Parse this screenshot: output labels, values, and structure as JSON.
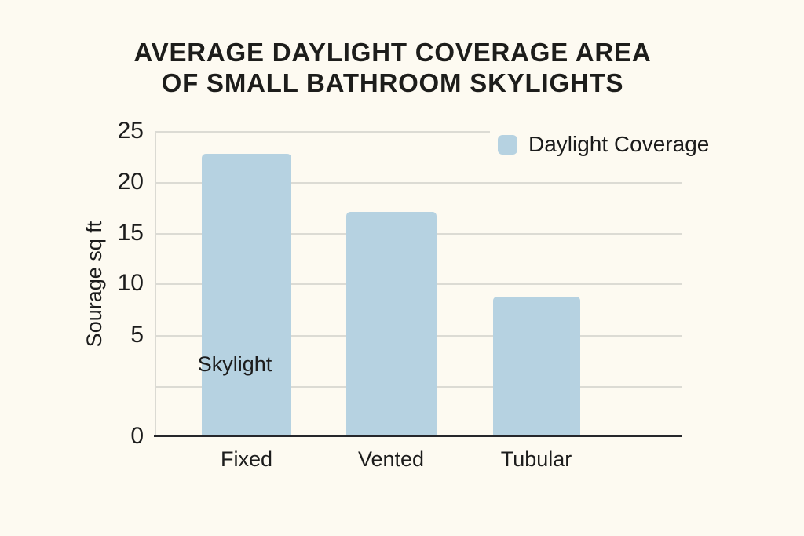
{
  "title": {
    "line1": "AVERAGE DAYLIGHT COVERAGE AREA",
    "line2": "OF SMALL BATHROOM SKYLIGHTS"
  },
  "legend": {
    "label": "Daylight Coverage"
  },
  "y_axis": {
    "label": "Sourage sq ft",
    "ticks": [
      "25",
      "20",
      "15",
      "10",
      "5",
      "0"
    ]
  },
  "x_axis": {
    "label": "Skylight",
    "categories": [
      "Fixed",
      "Vented",
      "Tubular"
    ]
  },
  "chart_data": {
    "type": "bar",
    "title": "AVERAGE DAYLIGHT COVERAGE AREA OF SMALL BATHROOM SKYLIGHTS",
    "categories": [
      "Fixed",
      "Vented",
      "Tubular"
    ],
    "series": [
      {
        "name": "Daylight Coverage",
        "values": [
          22.8,
          17.1,
          8.8
        ]
      }
    ],
    "xlabel": "Skylight",
    "ylabel": "Sourage sq ft",
    "ylim": [
      0,
      25
    ],
    "yticks": [
      0,
      5,
      10,
      15,
      20,
      25
    ],
    "grid": true,
    "legend_position": "top-right",
    "bar_color": "#b6d2e1",
    "axis_note": "an extra unlabeled gridline sits between 5 and 0, stretching the bottom interval"
  },
  "colors": {
    "background": "#fdfaf1",
    "bar": "#b6d2e1",
    "gridline": "#dcdbd4",
    "axis_line": "#26272b",
    "text": "#1c1c1c"
  }
}
